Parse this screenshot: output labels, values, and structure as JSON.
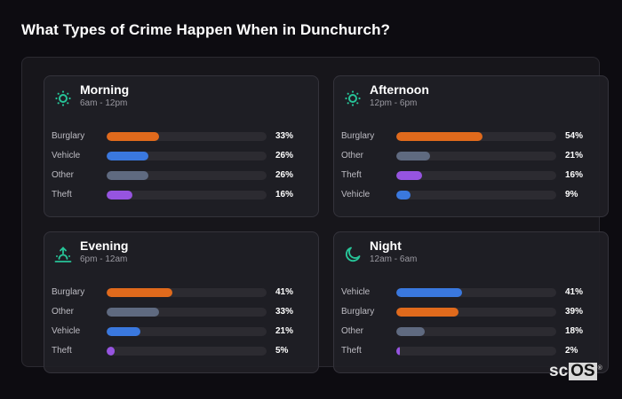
{
  "page": {
    "title": "What Types of Crime Happen When in Dunchurch?"
  },
  "colors": {
    "accent": "#27c498",
    "burglary": "#e06a1c",
    "vehicle": "#3a78de",
    "other": "#5f6a80",
    "theft": "#9654e0"
  },
  "cards": [
    {
      "title": "Morning",
      "subtitle": "6am - 12pm",
      "icon": "sun-icon",
      "rows": [
        {
          "label": "Burglary",
          "value": 33,
          "pct": "33%",
          "color": "#e06a1c"
        },
        {
          "label": "Vehicle",
          "value": 26,
          "pct": "26%",
          "color": "#3a78de"
        },
        {
          "label": "Other",
          "value": 26,
          "pct": "26%",
          "color": "#5f6a80"
        },
        {
          "label": "Theft",
          "value": 16,
          "pct": "16%",
          "color": "#9654e0"
        }
      ]
    },
    {
      "title": "Afternoon",
      "subtitle": "12pm - 6pm",
      "icon": "sun-icon",
      "rows": [
        {
          "label": "Burglary",
          "value": 54,
          "pct": "54%",
          "color": "#e06a1c"
        },
        {
          "label": "Other",
          "value": 21,
          "pct": "21%",
          "color": "#5f6a80"
        },
        {
          "label": "Theft",
          "value": 16,
          "pct": "16%",
          "color": "#9654e0"
        },
        {
          "label": "Vehicle",
          "value": 9,
          "pct": "9%",
          "color": "#3a78de"
        }
      ]
    },
    {
      "title": "Evening",
      "subtitle": "6pm - 12am",
      "icon": "sunset-icon",
      "rows": [
        {
          "label": "Burglary",
          "value": 41,
          "pct": "41%",
          "color": "#e06a1c"
        },
        {
          "label": "Other",
          "value": 33,
          "pct": "33%",
          "color": "#5f6a80"
        },
        {
          "label": "Vehicle",
          "value": 21,
          "pct": "21%",
          "color": "#3a78de"
        },
        {
          "label": "Theft",
          "value": 5,
          "pct": "5%",
          "color": "#9654e0"
        }
      ]
    },
    {
      "title": "Night",
      "subtitle": "12am - 6am",
      "icon": "moon-icon",
      "rows": [
        {
          "label": "Vehicle",
          "value": 41,
          "pct": "41%",
          "color": "#3a78de"
        },
        {
          "label": "Burglary",
          "value": 39,
          "pct": "39%",
          "color": "#e06a1c"
        },
        {
          "label": "Other",
          "value": 18,
          "pct": "18%",
          "color": "#5f6a80"
        },
        {
          "label": "Theft",
          "value": 2,
          "pct": "2%",
          "color": "#9654e0"
        }
      ]
    }
  ],
  "logo": {
    "prefix": "sc",
    "suffix": "OS",
    "mark": "®"
  }
}
